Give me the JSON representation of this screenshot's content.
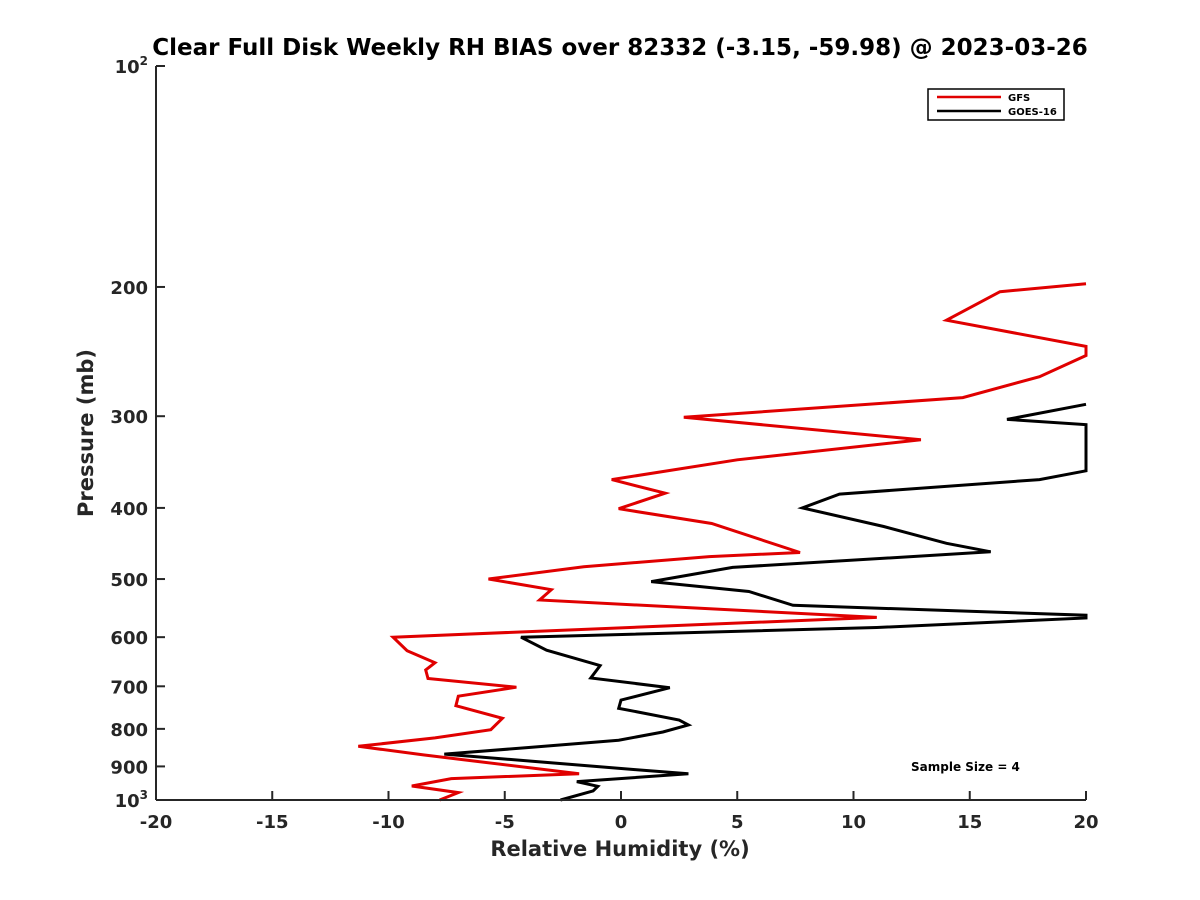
{
  "chart_data": {
    "type": "line",
    "title": "Clear Full Disk Weekly RH BIAS over 82332 (-3.15, -59.98) @ 2023-03-26",
    "xlabel": "Relative Humidity (%)",
    "ylabel": "Pressure (mb)",
    "xlim": [
      -20,
      20
    ],
    "ylim": [
      100,
      1000
    ],
    "y_scale": "log",
    "y_reversed": true,
    "x_ticks": [
      "-20",
      "-15",
      "-10",
      "-5",
      "0",
      "5",
      "10",
      "15",
      "20"
    ],
    "y_ticks": [
      {
        "value": 100,
        "base": "10",
        "exp": "2"
      },
      {
        "value": 200,
        "label": "200"
      },
      {
        "value": 300,
        "label": "300"
      },
      {
        "value": 400,
        "label": "400"
      },
      {
        "value": 500,
        "label": "500"
      },
      {
        "value": 600,
        "label": "600"
      },
      {
        "value": 700,
        "label": "700"
      },
      {
        "value": 800,
        "label": "800"
      },
      {
        "value": 900,
        "label": "900"
      },
      {
        "value": 1000,
        "base": "10",
        "exp": "3"
      }
    ],
    "grid": false,
    "legend_position": "top-right",
    "series": [
      {
        "name": "GFS",
        "color": "#e00000",
        "points": [
          [
            20,
            198
          ],
          [
            16.3,
            203
          ],
          [
            14,
            222
          ],
          [
            20,
            241
          ],
          [
            20,
            248
          ],
          [
            18,
            265
          ],
          [
            14.7,
            283
          ],
          [
            2.7,
            301
          ],
          [
            12.9,
            323
          ],
          [
            5,
            344
          ],
          [
            -0.4,
            366
          ],
          [
            1.9,
            382
          ],
          [
            -0.1,
            401
          ],
          [
            3.9,
            420
          ],
          [
            7.7,
            460
          ],
          [
            3.8,
            466
          ],
          [
            -1.6,
            481
          ],
          [
            -5.7,
            500
          ],
          [
            -3,
            517
          ],
          [
            -3.5,
            534
          ],
          [
            11,
            564
          ],
          [
            1.5,
            580
          ],
          [
            -9.8,
            600
          ],
          [
            -9.2,
            626
          ],
          [
            -8,
            650
          ],
          [
            -8.4,
            665
          ],
          [
            -8.3,
            683
          ],
          [
            -4.5,
            702
          ],
          [
            -7,
            722
          ],
          [
            -7.1,
            744
          ],
          [
            -5.1,
            774
          ],
          [
            -5.6,
            802
          ],
          [
            -8,
            823
          ],
          [
            -11.3,
            845
          ],
          [
            -8.5,
            868
          ],
          [
            -1.8,
            921
          ],
          [
            -7.3,
            935
          ],
          [
            -9,
            957
          ],
          [
            -7,
            977
          ],
          [
            -7.8,
            1000
          ]
        ]
      },
      {
        "name": "GOES-16",
        "color": "#000000",
        "points": [
          [
            20,
            289
          ],
          [
            16.6,
            303
          ],
          [
            20,
            308
          ],
          [
            20,
            356
          ],
          [
            18,
            366
          ],
          [
            9.4,
            383
          ],
          [
            7.8,
            400
          ],
          [
            11.3,
            424
          ],
          [
            14,
            447
          ],
          [
            15.9,
            459
          ],
          [
            4.8,
            482
          ],
          [
            1.3,
            504
          ],
          [
            5.5,
            520
          ],
          [
            7.4,
            543
          ],
          [
            20,
            560
          ],
          [
            20,
            565
          ],
          [
            11,
            582
          ],
          [
            -4.3,
            600
          ],
          [
            -3.2,
            625
          ],
          [
            -0.9,
            656
          ],
          [
            -1.3,
            682
          ],
          [
            2.1,
            703
          ],
          [
            0,
            731
          ],
          [
            -0.1,
            750
          ],
          [
            2.5,
            778
          ],
          [
            2.9,
            790
          ],
          [
            1.8,
            808
          ],
          [
            -0.1,
            829
          ],
          [
            -3.9,
            848
          ],
          [
            -7.6,
            866
          ],
          [
            0.6,
            909
          ],
          [
            2.9,
            921
          ],
          [
            -1.9,
            944
          ],
          [
            -1,
            958
          ],
          [
            -1.2,
            972
          ],
          [
            -2.6,
            1000
          ]
        ]
      }
    ],
    "annotations": [
      "Sample Size = 4"
    ]
  }
}
